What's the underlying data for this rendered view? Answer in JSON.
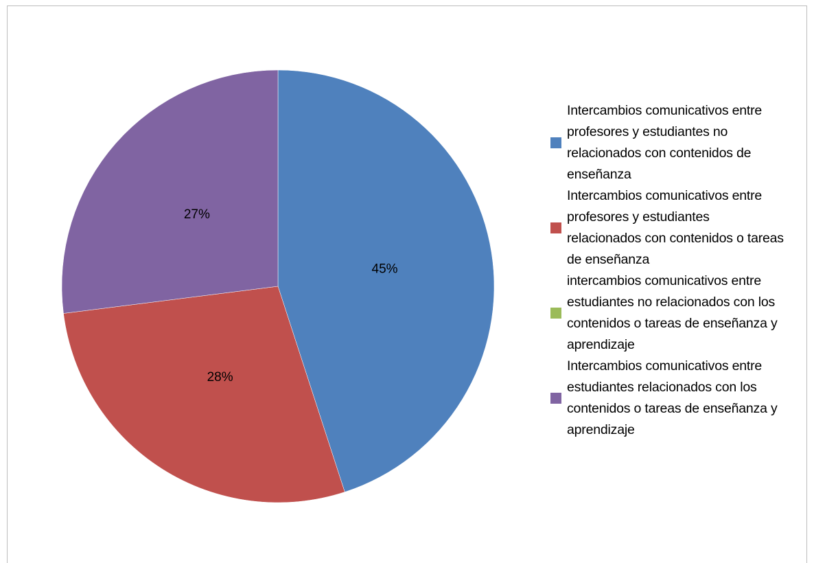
{
  "chart_data": {
    "type": "pie",
    "categories": [
      "Intercambios comunicativos entre profesores y estudiantes no relacionados con contenidos de enseñanza",
      "Intercambios comunicativos entre profesores y estudiantes relacionados con contenidos o tareas de enseñanza",
      "intercambios comunicativos entre estudiantes no relacionados con los contenidos o tareas de enseñanza y aprendizaje",
      "Intercambios comunicativos entre estudiantes relacionados con los contenidos o tareas de enseñanza y aprendizaje"
    ],
    "values": [
      45,
      28,
      0,
      27
    ],
    "value_labels": [
      "45%",
      "28%",
      null,
      "27%"
    ],
    "colors": [
      "#4f81bd",
      "#c0504d",
      "#9bbb59",
      "#8064a2"
    ],
    "legend": "right"
  }
}
